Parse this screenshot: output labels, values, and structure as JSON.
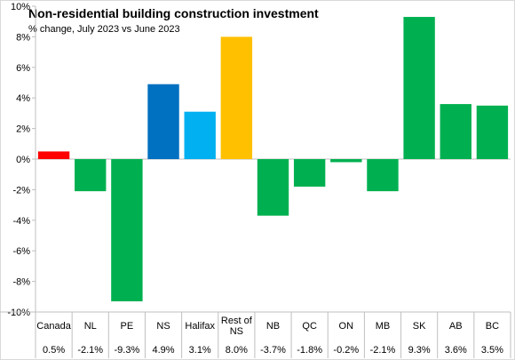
{
  "chart_data": {
    "type": "bar",
    "title": "Non-residential building construction investment",
    "subtitle": "% change, July 2023 vs June 2023",
    "categories": [
      "Canada",
      "NL",
      "PE",
      "NS",
      "Halifax",
      "Rest of NS",
      "NB",
      "QC",
      "ON",
      "MB",
      "SK",
      "AB",
      "BC"
    ],
    "values": [
      0.5,
      -2.1,
      -9.3,
      4.9,
      3.1,
      8.0,
      -3.7,
      -1.8,
      -0.2,
      -2.1,
      9.3,
      3.6,
      3.5
    ],
    "value_labels": [
      "0.5%",
      "-2.1%",
      "-9.3%",
      "4.9%",
      "3.1%",
      "8.0%",
      "-3.7%",
      "-1.8%",
      "-0.2%",
      "-2.1%",
      "9.3%",
      "3.6%",
      "3.5%"
    ],
    "colors": [
      "#ff0000",
      "#00b050",
      "#00b050",
      "#0070c0",
      "#00b0f0",
      "#ffc000",
      "#00b050",
      "#00b050",
      "#00b050",
      "#00b050",
      "#00b050",
      "#00b050",
      "#00b050"
    ],
    "ylim": [
      -10,
      10
    ],
    "yticks": [
      -10,
      -8,
      -6,
      -4,
      -2,
      0,
      2,
      4,
      6,
      8,
      10
    ],
    "ytick_labels": [
      "-10%",
      "-8%",
      "-6%",
      "-4%",
      "-2%",
      "0%",
      "2%",
      "4%",
      "6%",
      "8%",
      "10%"
    ],
    "xlabel": "",
    "ylabel": "",
    "grid": false,
    "legend": "none"
  }
}
